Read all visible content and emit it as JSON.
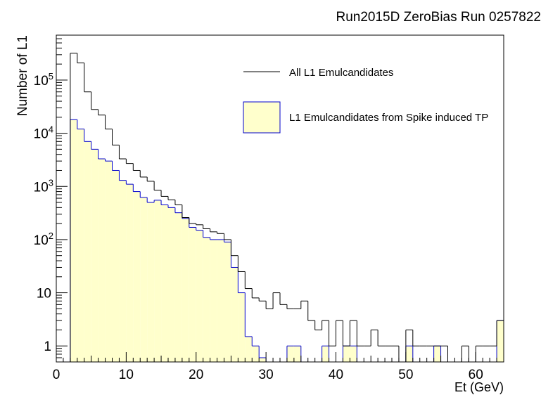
{
  "chart_data": {
    "type": "histogram",
    "title": "Run2015D ZeroBias Run 0257822",
    "xlabel": "Et (GeV)",
    "ylabel": "Number of L1",
    "xlim": [
      0,
      64
    ],
    "ylim": [
      0.5,
      700000
    ],
    "ylog": true,
    "bin_width": 1,
    "x_ticks": [
      0,
      10,
      20,
      30,
      40,
      50,
      60
    ],
    "x_tick_labels": [
      "0",
      "10",
      "20",
      "30",
      "40",
      "50",
      "60"
    ],
    "y_ticks": [
      {
        "value": 1,
        "base": "1",
        "exp": ""
      },
      {
        "value": 10,
        "base": "10",
        "exp": ""
      },
      {
        "value": 100,
        "base": "10",
        "exp": "2"
      },
      {
        "value": 1000,
        "base": "10",
        "exp": "3"
      },
      {
        "value": 10000,
        "base": "10",
        "exp": "4"
      },
      {
        "value": 100000,
        "base": "10",
        "exp": "5"
      }
    ],
    "legend_position": "top-right",
    "series": [
      {
        "name": "All L1 Emulcandidates",
        "style": "line",
        "color": "#000000",
        "values": [
          0,
          0,
          320000,
          210000,
          60000,
          28000,
          22000,
          12000,
          6000,
          3300,
          2700,
          2000,
          1500,
          1250,
          850,
          650,
          560,
          450,
          260,
          200,
          190,
          160,
          140,
          130,
          100,
          50,
          25,
          12,
          8,
          7,
          5,
          10,
          6,
          5,
          5,
          7,
          3,
          2,
          3,
          1,
          3,
          1,
          3,
          1,
          1,
          2,
          1,
          1,
          1,
          0,
          2,
          1,
          1,
          1,
          1,
          1,
          0,
          0,
          1,
          0,
          1,
          1,
          1,
          3
        ]
      },
      {
        "name": "L1 Emulcandidates from Spike induced TP",
        "style": "filled",
        "color": "#0000cc",
        "fill": "#ffffcc",
        "values": [
          0,
          0,
          18000,
          12000,
          7000,
          5000,
          3300,
          3000,
          2000,
          1300,
          1100,
          800,
          620,
          500,
          550,
          450,
          400,
          320,
          250,
          170,
          150,
          110,
          100,
          100,
          90,
          30,
          10,
          1.5,
          1,
          0.6,
          0,
          0,
          0,
          1,
          1,
          0,
          0,
          0,
          1,
          0,
          0,
          1,
          1,
          0,
          0,
          0,
          0,
          0,
          0,
          0,
          1,
          0,
          0,
          0,
          1,
          0,
          0,
          0,
          0,
          0,
          0,
          0,
          0,
          3
        ]
      }
    ]
  }
}
